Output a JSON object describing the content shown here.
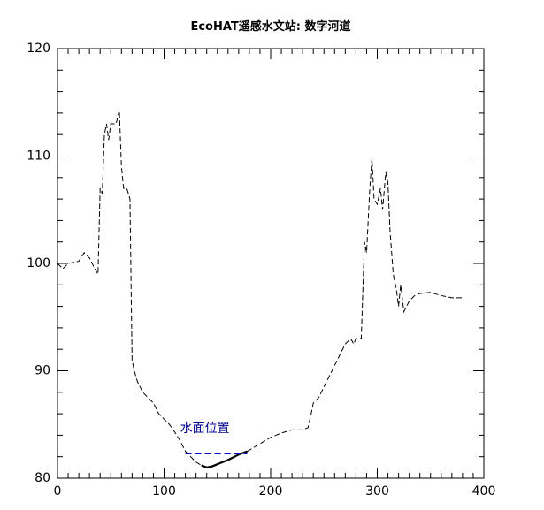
{
  "chart_data": {
    "type": "line",
    "title": "EcoHAT遥感水文站: 数字河道",
    "annotation": "水面位置",
    "x": [
      0,
      5,
      10,
      20,
      25,
      30,
      35,
      38,
      40,
      42,
      44,
      46,
      48,
      50,
      55,
      58,
      60,
      62,
      65,
      68,
      70,
      72,
      75,
      80,
      85,
      90,
      95,
      100,
      105,
      110,
      115,
      120,
      125,
      130,
      135,
      140,
      145,
      150,
      160,
      170,
      178,
      190,
      200,
      210,
      220,
      230,
      235,
      238,
      240,
      245,
      250,
      255,
      260,
      265,
      270,
      275,
      278,
      280,
      285,
      288,
      290,
      293,
      295,
      297,
      300,
      303,
      305,
      308,
      310,
      312,
      315,
      318,
      320,
      322,
      325,
      330,
      335,
      340,
      350,
      360,
      370,
      380
    ],
    "values": [
      100,
      99.5,
      100,
      100.2,
      101,
      100.5,
      99.5,
      99,
      107,
      106.5,
      112,
      113,
      111.5,
      113,
      113,
      114.3,
      109,
      107,
      107,
      106,
      91,
      90,
      89,
      88,
      87.5,
      87,
      86,
      85.5,
      85,
      84.3,
      83.5,
      82.5,
      82,
      81.5,
      81.2,
      81,
      81.1,
      81.3,
      81.7,
      82.2,
      82.5,
      83.2,
      83.8,
      84.2,
      84.5,
      84.5,
      84.7,
      86,
      87,
      87.5,
      88.5,
      89.5,
      90.5,
      91.5,
      92.5,
      93,
      92.5,
      93,
      93,
      102,
      101,
      107,
      109.8,
      106,
      105.5,
      107,
      105,
      108.5,
      107.5,
      103,
      99,
      97.5,
      96,
      98,
      95.5,
      96.5,
      97,
      97.2,
      97.3,
      97,
      96.8,
      96.8
    ],
    "color": "#000000",
    "bed": {
      "x": [
        135,
        140,
        145,
        150,
        160,
        170,
        178
      ],
      "values": [
        81.2,
        81,
        81.1,
        81.3,
        81.7,
        82.2,
        82.5
      ],
      "color": "#000000"
    },
    "water_level": {
      "x": [
        120,
        178
      ],
      "values": [
        82.3,
        82.3
      ],
      "color": "#0000cc"
    },
    "xlim": [
      0,
      400
    ],
    "xticks": [
      0,
      100,
      200,
      300,
      400
    ],
    "xminor": 10,
    "ylim": [
      80,
      120
    ],
    "yticks": [
      80,
      90,
      100,
      110,
      120
    ],
    "yminor": 2
  }
}
